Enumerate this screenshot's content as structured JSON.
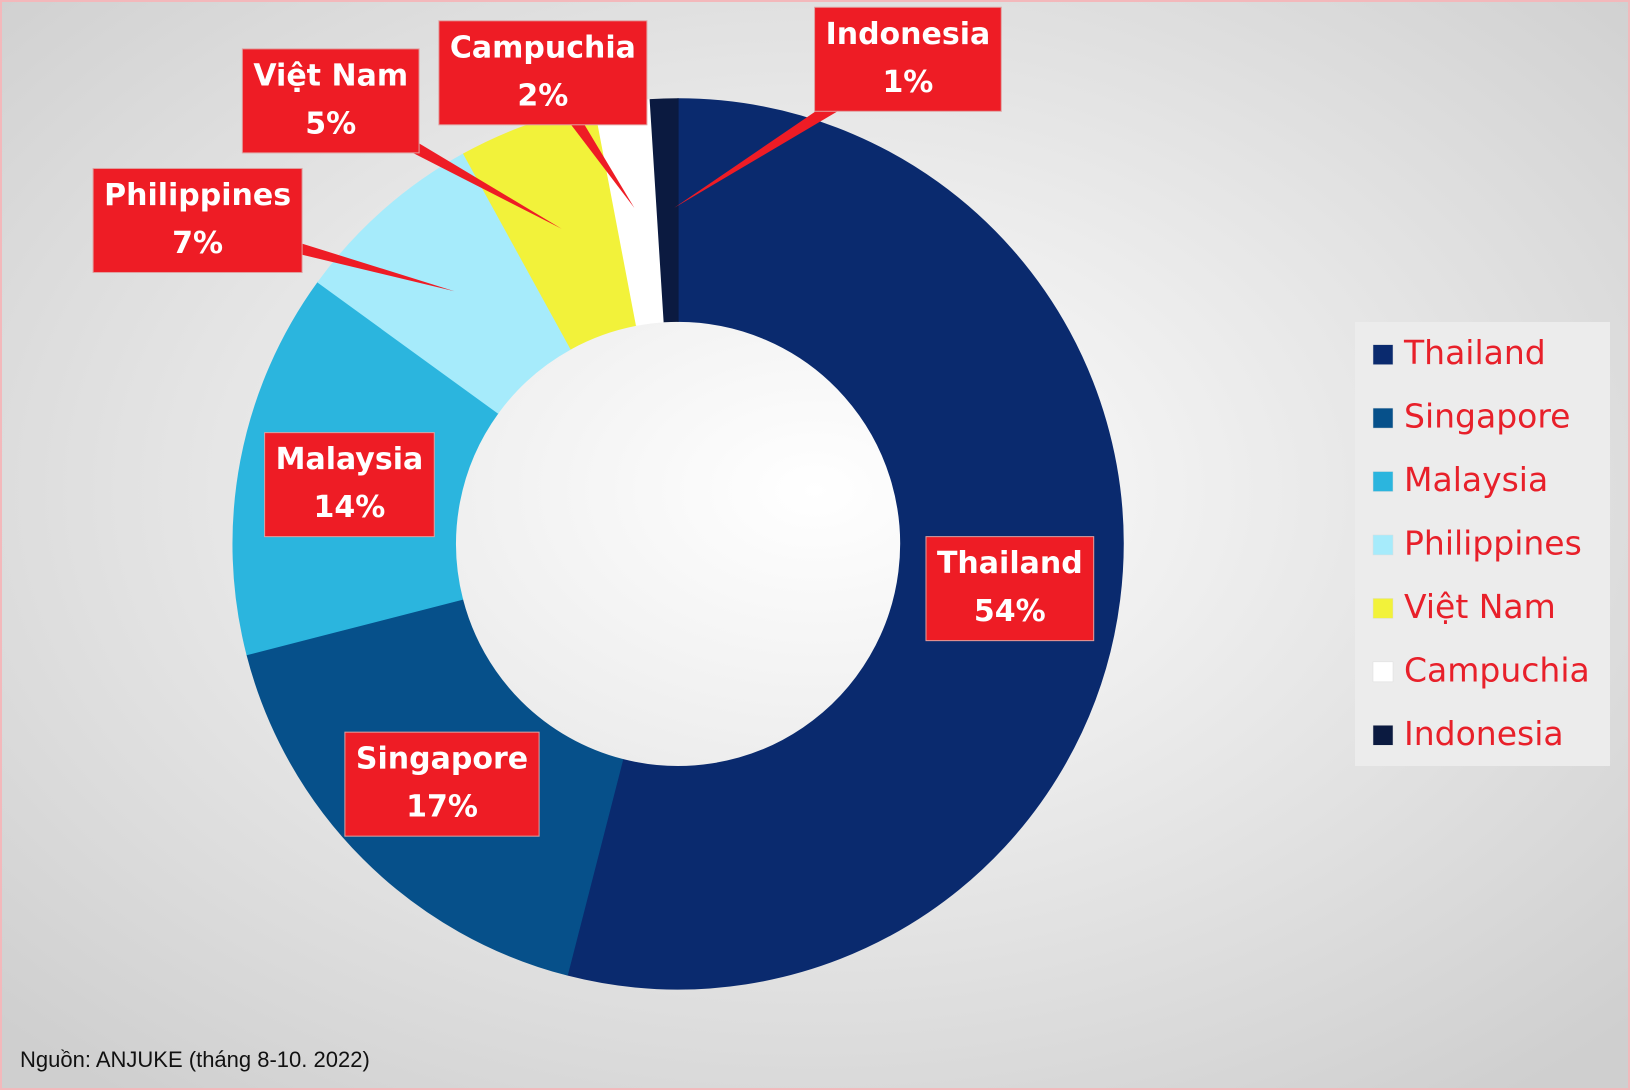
{
  "chart_data": {
    "type": "donut",
    "categories": [
      "Thailand",
      "Singapore",
      "Malaysia",
      "Philippines",
      "Việt Nam",
      "Campuchia",
      "Indonesia"
    ],
    "values": [
      54,
      17,
      14,
      7,
      5,
      2,
      1
    ],
    "value_labels": [
      "54%",
      "17%",
      "14%",
      "7%",
      "5%",
      "2%",
      "1%"
    ],
    "colors": [
      "#0a2a6e",
      "#06508a",
      "#2bb5de",
      "#a6ebfb",
      "#f2f23a",
      "#ffffff",
      "#0b1a40"
    ],
    "legend": "right",
    "source": "Nguồn: ANJUKE (tháng 8-10. 2022)"
  }
}
